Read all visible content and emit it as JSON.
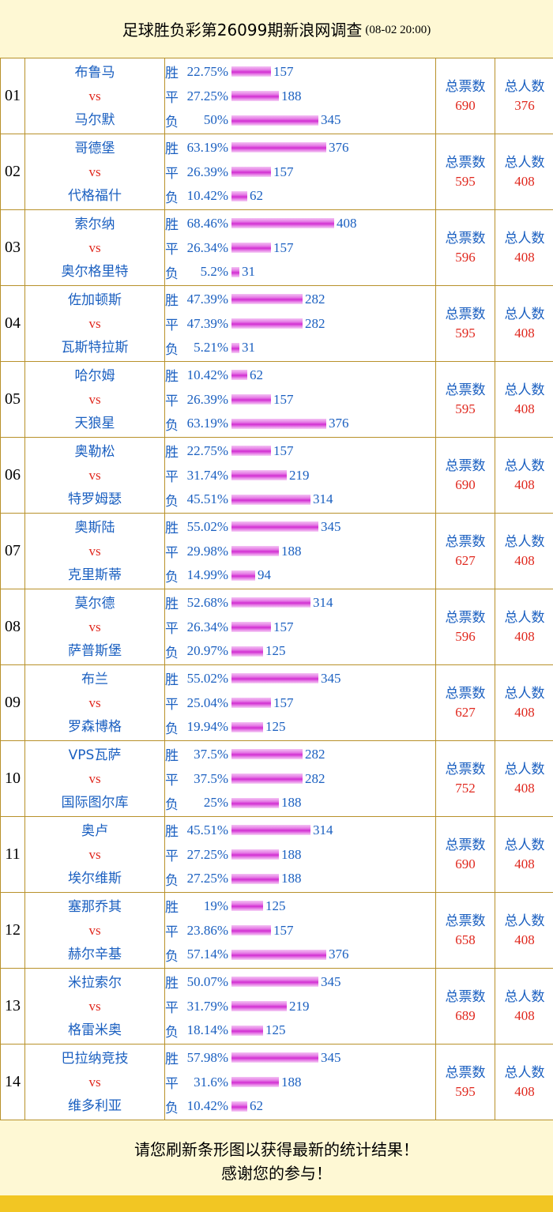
{
  "header": {
    "title": "足球胜负彩第26099期新浪网调查",
    "time": "(08-02 20:00)"
  },
  "labels": {
    "win": "胜",
    "draw": "平",
    "lose": "负",
    "vs": "vs",
    "total_votes": "总票数",
    "total_people": "总人数"
  },
  "matches": [
    {
      "no": "01",
      "home": "布鲁马",
      "away": "马尔默",
      "rows": [
        {
          "pct": "22.75%",
          "count": 157
        },
        {
          "pct": "27.25%",
          "count": 188
        },
        {
          "pct": "50%",
          "count": 345
        }
      ],
      "votes": 690,
      "people": 376
    },
    {
      "no": "02",
      "home": "哥德堡",
      "away": "代格福什",
      "rows": [
        {
          "pct": "63.19%",
          "count": 376
        },
        {
          "pct": "26.39%",
          "count": 157
        },
        {
          "pct": "10.42%",
          "count": 62
        }
      ],
      "votes": 595,
      "people": 408
    },
    {
      "no": "03",
      "home": "索尔纳",
      "away": "奥尔格里特",
      "rows": [
        {
          "pct": "68.46%",
          "count": 408
        },
        {
          "pct": "26.34%",
          "count": 157
        },
        {
          "pct": "5.2%",
          "count": 31
        }
      ],
      "votes": 596,
      "people": 408
    },
    {
      "no": "04",
      "home": "佐加顿斯",
      "away": "瓦斯特拉斯",
      "rows": [
        {
          "pct": "47.39%",
          "count": 282
        },
        {
          "pct": "47.39%",
          "count": 282
        },
        {
          "pct": "5.21%",
          "count": 31
        }
      ],
      "votes": 595,
      "people": 408
    },
    {
      "no": "05",
      "home": "哈尔姆",
      "away": "天狼星",
      "rows": [
        {
          "pct": "10.42%",
          "count": 62
        },
        {
          "pct": "26.39%",
          "count": 157
        },
        {
          "pct": "63.19%",
          "count": 376
        }
      ],
      "votes": 595,
      "people": 408
    },
    {
      "no": "06",
      "home": "奥勒松",
      "away": "特罗姆瑟",
      "rows": [
        {
          "pct": "22.75%",
          "count": 157
        },
        {
          "pct": "31.74%",
          "count": 219
        },
        {
          "pct": "45.51%",
          "count": 314
        }
      ],
      "votes": 690,
      "people": 408
    },
    {
      "no": "07",
      "home": "奥斯陆",
      "away": "克里斯蒂",
      "rows": [
        {
          "pct": "55.02%",
          "count": 345
        },
        {
          "pct": "29.98%",
          "count": 188
        },
        {
          "pct": "14.99%",
          "count": 94
        }
      ],
      "votes": 627,
      "people": 408
    },
    {
      "no": "08",
      "home": "莫尔德",
      "away": "萨普斯堡",
      "rows": [
        {
          "pct": "52.68%",
          "count": 314
        },
        {
          "pct": "26.34%",
          "count": 157
        },
        {
          "pct": "20.97%",
          "count": 125
        }
      ],
      "votes": 596,
      "people": 408
    },
    {
      "no": "09",
      "home": "布兰",
      "away": "罗森博格",
      "rows": [
        {
          "pct": "55.02%",
          "count": 345
        },
        {
          "pct": "25.04%",
          "count": 157
        },
        {
          "pct": "19.94%",
          "count": 125
        }
      ],
      "votes": 627,
      "people": 408
    },
    {
      "no": "10",
      "home": "VPS瓦萨",
      "away": "国际图尔库",
      "rows": [
        {
          "pct": "37.5%",
          "count": 282
        },
        {
          "pct": "37.5%",
          "count": 282
        },
        {
          "pct": "25%",
          "count": 188
        }
      ],
      "votes": 752,
      "people": 408
    },
    {
      "no": "11",
      "home": "奥卢",
      "away": "埃尔维斯",
      "rows": [
        {
          "pct": "45.51%",
          "count": 314
        },
        {
          "pct": "27.25%",
          "count": 188
        },
        {
          "pct": "27.25%",
          "count": 188
        }
      ],
      "votes": 690,
      "people": 408
    },
    {
      "no": "12",
      "home": "塞那乔其",
      "away": "赫尔辛基",
      "rows": [
        {
          "pct": "19%",
          "count": 125
        },
        {
          "pct": "23.86%",
          "count": 157
        },
        {
          "pct": "57.14%",
          "count": 376
        }
      ],
      "votes": 658,
      "people": 408
    },
    {
      "no": "13",
      "home": "米拉索尔",
      "away": "格雷米奥",
      "rows": [
        {
          "pct": "50.07%",
          "count": 345
        },
        {
          "pct": "31.79%",
          "count": 219
        },
        {
          "pct": "18.14%",
          "count": 125
        }
      ],
      "votes": 689,
      "people": 408
    },
    {
      "no": "14",
      "home": "巴拉纳竞技",
      "away": "维多利亚",
      "rows": [
        {
          "pct": "57.98%",
          "count": 345
        },
        {
          "pct": "31.6%",
          "count": 188
        },
        {
          "pct": "10.42%",
          "count": 62
        }
      ],
      "votes": 595,
      "people": 408
    }
  ],
  "footer": {
    "line1": "请您刷新条形图以获得最新的统计结果！",
    "line2": "感谢您的参与！"
  },
  "colors": {
    "background": "#fef8d4",
    "border": "#b8912a",
    "label_blue": "#1a5fc0",
    "value_red": "#e0281e",
    "bar_magenta": "#d22fd2",
    "strip_yellow": "#f2c623"
  }
}
